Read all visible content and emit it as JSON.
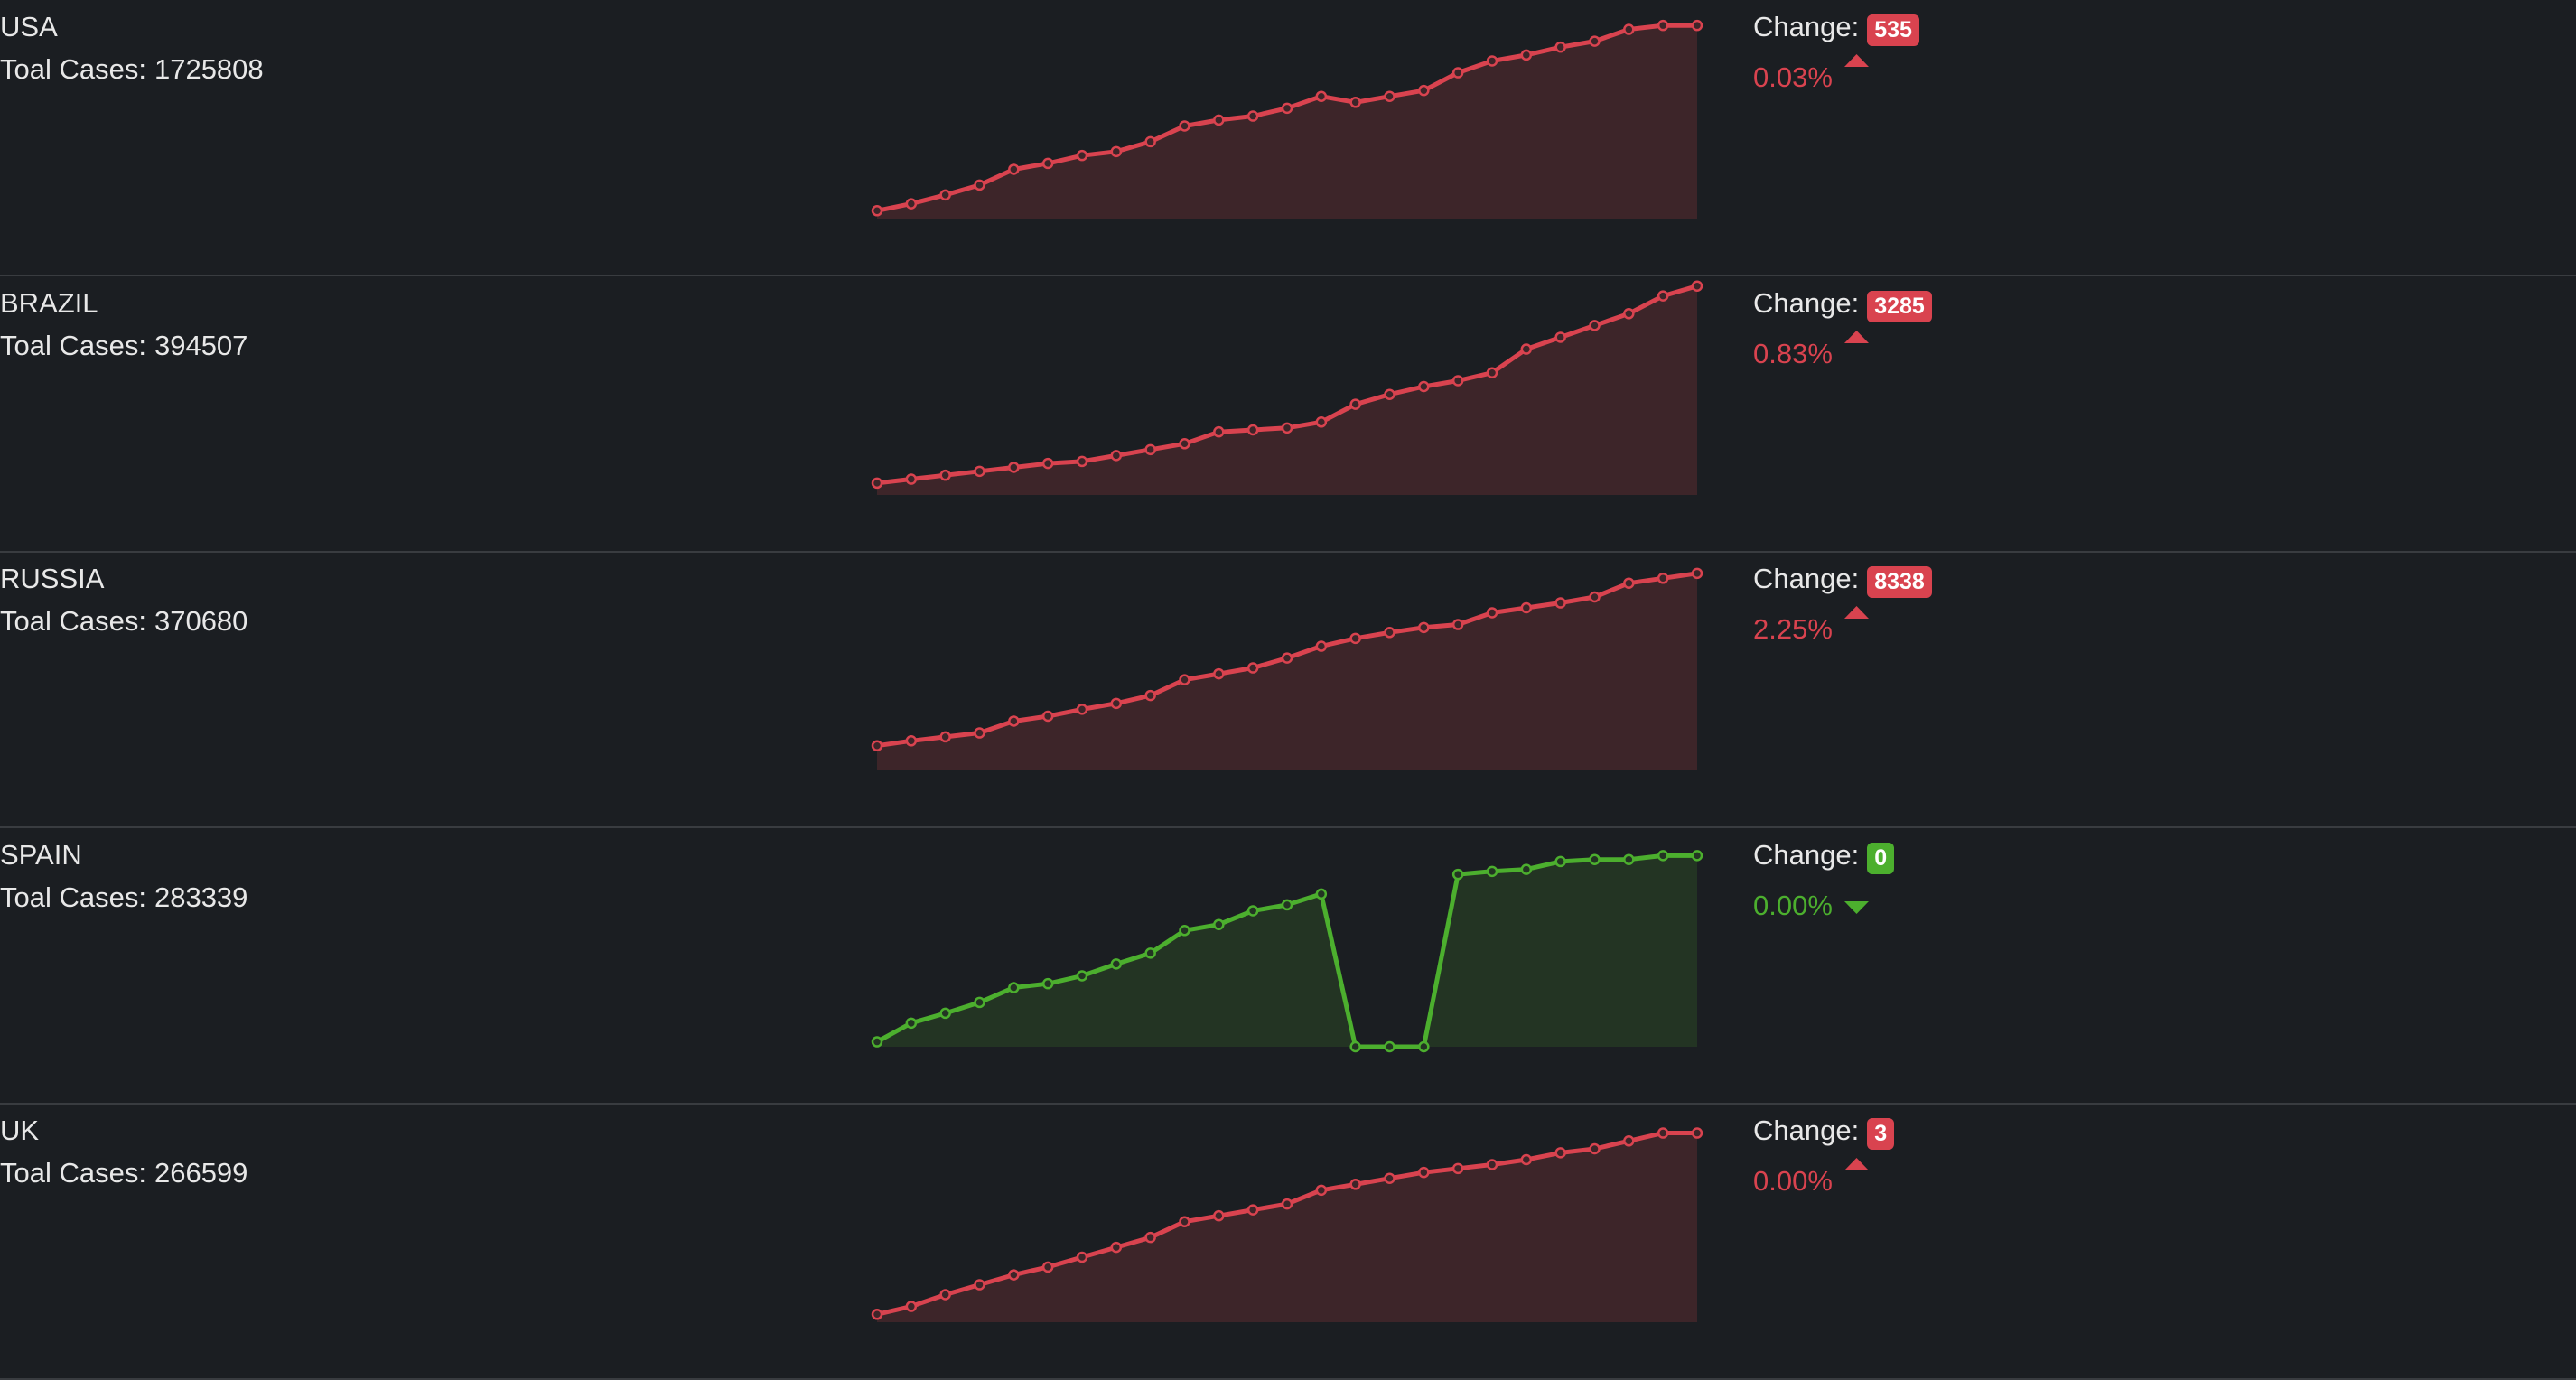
{
  "rows": [
    {
      "country": "USA",
      "total_label": "Toal Cases:",
      "total": 1725808,
      "change_label": "Change:",
      "change": 535,
      "percent": "0.03%",
      "trend": "up",
      "color": "#d9434f",
      "fill": "#3d2529",
      "ylim": [
        0,
        110
      ],
      "values": [
        4,
        7.5,
        12,
        17,
        25,
        28,
        32,
        34,
        39,
        47,
        50,
        52,
        56,
        62,
        59,
        62,
        65,
        74,
        80,
        83,
        87,
        90,
        96,
        98,
        98
      ]
    },
    {
      "country": "BRAZIL",
      "total_label": "Toal Cases:",
      "total": 394507,
      "change_label": "Change:",
      "change": 3285,
      "percent": "0.83%",
      "trend": "up",
      "color": "#d9434f",
      "fill": "#3d2529",
      "ylim": [
        0,
        110
      ],
      "values": [
        6,
        8,
        10,
        12,
        14,
        16,
        17,
        20,
        23,
        26,
        32,
        33,
        34,
        37,
        46,
        51,
        55,
        58,
        62,
        74,
        80,
        86,
        92,
        101,
        106
      ]
    },
    {
      "country": "RUSSIA",
      "total_label": "Toal Cases:",
      "total": 370680,
      "change_label": "Change:",
      "change": 8338,
      "percent": "2.25%",
      "trend": "up",
      "color": "#d9434f",
      "fill": "#3d2529",
      "ylim": [
        0,
        110
      ],
      "values": [
        12.5,
        15,
        17,
        19,
        25,
        27.5,
        31,
        34,
        38,
        46,
        49,
        52,
        57,
        63,
        67,
        70,
        72.5,
        74,
        80,
        82.5,
        85,
        88,
        95,
        97.5,
        100
      ]
    },
    {
      "country": "SPAIN",
      "total_label": "Toal Cases:",
      "total": 283339,
      "change_label": "Change:",
      "change": 0,
      "percent": "0.00%",
      "trend": "down",
      "color": "#4caf2e",
      "fill": "#233423",
      "ylim": [
        0,
        110
      ],
      "values": [
        2.5,
        12,
        17,
        22.5,
        30,
        32,
        36,
        42,
        47.5,
        59,
        62,
        69,
        72,
        77.5,
        0,
        0,
        0,
        87.5,
        89,
        90,
        94,
        95,
        95,
        97,
        97
      ]
    },
    {
      "country": "UK",
      "total_label": "Toal Cases:",
      "total": 266599,
      "change_label": "Change:",
      "change": 3,
      "percent": "0.00%",
      "trend": "up",
      "color": "#d9434f",
      "fill": "#3d2529",
      "ylim": [
        0,
        110
      ],
      "values": [
        4,
        8,
        14,
        19,
        24,
        28,
        33,
        38,
        43,
        51,
        54,
        57,
        60,
        67,
        70,
        73,
        76,
        78,
        80,
        82.5,
        86,
        88,
        92,
        96,
        96
      ]
    }
  ]
}
